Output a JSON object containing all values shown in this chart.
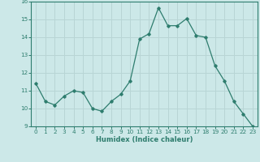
{
  "x": [
    0,
    1,
    2,
    3,
    4,
    5,
    6,
    7,
    8,
    9,
    10,
    11,
    12,
    13,
    14,
    15,
    16,
    17,
    18,
    19,
    20,
    21,
    22,
    23
  ],
  "y": [
    11.4,
    10.4,
    10.2,
    10.7,
    11.0,
    10.9,
    10.0,
    9.85,
    10.4,
    10.8,
    11.55,
    13.9,
    14.2,
    15.65,
    14.65,
    14.65,
    15.05,
    14.1,
    14.0,
    12.4,
    11.55,
    10.4,
    9.7,
    9.0
  ],
  "xlabel": "Humidex (Indice chaleur)",
  "ylim": [
    9,
    16
  ],
  "xlim": [
    -0.5,
    23.5
  ],
  "yticks": [
    9,
    10,
    11,
    12,
    13,
    14,
    15,
    16
  ],
  "xticks": [
    0,
    1,
    2,
    3,
    4,
    5,
    6,
    7,
    8,
    9,
    10,
    11,
    12,
    13,
    14,
    15,
    16,
    17,
    18,
    19,
    20,
    21,
    22,
    23
  ],
  "line_color": "#2e7d6e",
  "marker": "D",
  "marker_size": 1.8,
  "bg_color": "#cce8e8",
  "grid_color": "#b8d5d5",
  "xlabel_fontsize": 6.0,
  "tick_fontsize": 5.2
}
